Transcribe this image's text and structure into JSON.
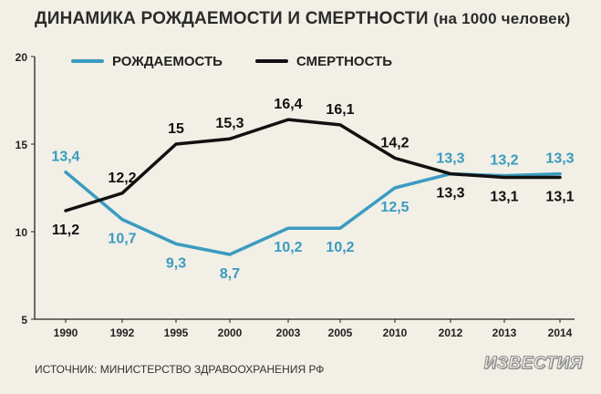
{
  "title": "ДИНАМИКА РОЖДАЕМОСТИ И СМЕРТНОСТИ",
  "subtitle": "(на 1000 человек)",
  "source": "ИСТОЧНИК: МИНИСТЕРСТВО ЗДРАВООХРАНЕНИЯ РФ",
  "brand": "ИЗВЕСТИЯ",
  "colors": {
    "background": "#f1efe6",
    "birth_series": "#3a9bbf",
    "death_series": "#111111",
    "axis": "#222222"
  },
  "chart_data": {
    "type": "line",
    "categories": [
      "1990",
      "1992",
      "1995",
      "2000",
      "2003",
      "2005",
      "2010",
      "2012",
      "2013",
      "2014"
    ],
    "y_ticks": [
      "5",
      "10",
      "15",
      "20"
    ],
    "ylim": [
      5,
      20
    ],
    "grid": false,
    "legend_position": "top",
    "series": [
      {
        "name": "РОЖДАЕМОСТЬ",
        "color": "#3a9bbf",
        "values": [
          13.4,
          10.7,
          9.3,
          8.7,
          10.2,
          10.2,
          12.5,
          13.3,
          13.2,
          13.3
        ],
        "labels": [
          "13,4",
          "10,7",
          "9,3",
          "8,7",
          "10,2",
          "10,2",
          "12,5",
          "13,3",
          "13,2",
          "13,3"
        ]
      },
      {
        "name": "СМЕРТНОСТЬ",
        "color": "#111111",
        "values": [
          11.2,
          12.2,
          15.0,
          15.3,
          16.4,
          16.1,
          14.2,
          13.3,
          13.1,
          13.1
        ],
        "labels": [
          "11,2",
          "12,2",
          "15",
          "15,3",
          "16,4",
          "16,1",
          "14,2",
          "13,3",
          "13,1",
          "13,1"
        ]
      }
    ]
  }
}
